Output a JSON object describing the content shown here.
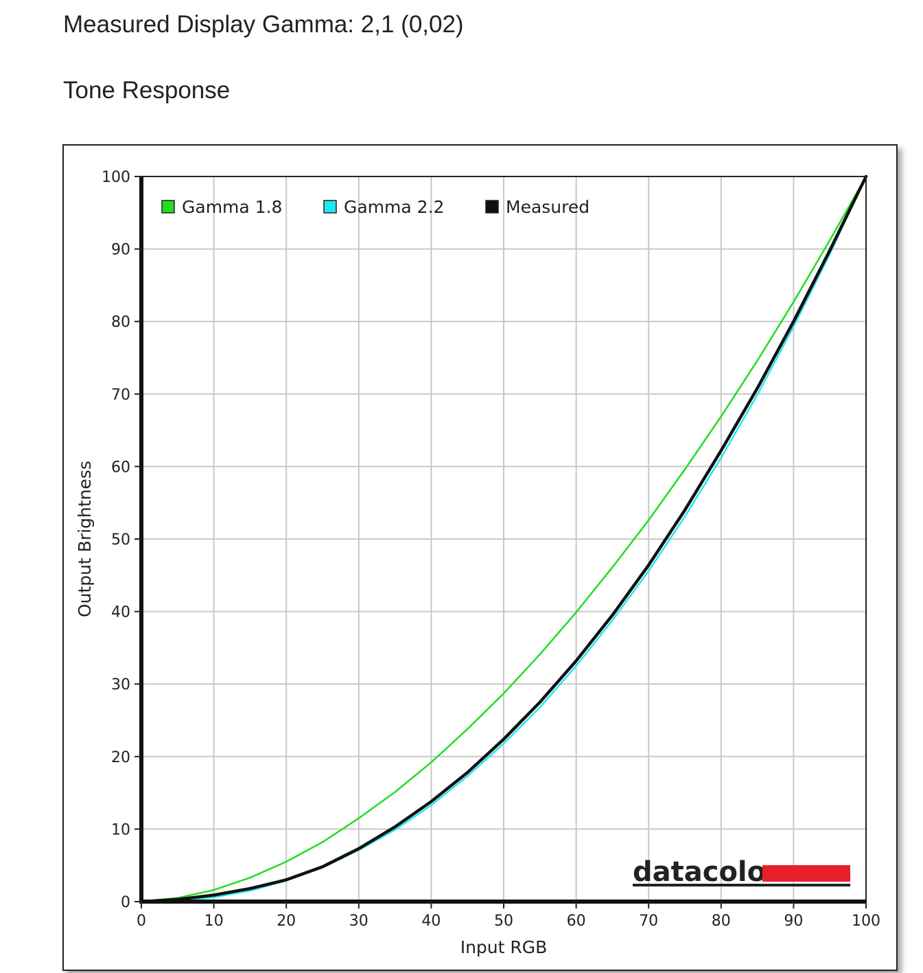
{
  "header": {
    "gamma_label": "Measured Display Gamma:",
    "gamma_value": "2,1 (0,02)",
    "section_title": "Tone Response"
  },
  "brand": {
    "logo_text": "datacolor",
    "logo_color": "#e8202a"
  },
  "chart_data": {
    "type": "line",
    "title": "",
    "xlabel": "Input RGB",
    "ylabel": "Output Brightness",
    "xlim": [
      0,
      100
    ],
    "ylim": [
      0,
      100
    ],
    "xticks": [
      0,
      10,
      20,
      30,
      40,
      50,
      60,
      70,
      80,
      90,
      100
    ],
    "yticks": [
      0,
      10,
      20,
      30,
      40,
      50,
      60,
      70,
      80,
      90,
      100
    ],
    "grid": true,
    "legend_position": "top-left",
    "series": [
      {
        "name": "Gamma 1.8",
        "color": "#22dd22",
        "x": [
          0,
          5,
          10,
          15,
          20,
          25,
          30,
          35,
          40,
          45,
          50,
          55,
          60,
          65,
          70,
          75,
          80,
          85,
          90,
          95,
          100
        ],
        "y": [
          0,
          0.5,
          1.6,
          3.3,
          5.5,
          8.2,
          11.5,
          15.1,
          19.2,
          23.8,
          28.7,
          34.1,
          39.9,
          46.1,
          52.6,
          59.6,
          66.9,
          74.6,
          82.7,
          91.2,
          100
        ]
      },
      {
        "name": "Gamma 2.2",
        "color": "#22e8ee",
        "x": [
          0,
          5,
          10,
          15,
          20,
          25,
          30,
          35,
          40,
          45,
          50,
          55,
          60,
          65,
          70,
          75,
          80,
          85,
          90,
          95,
          100
        ],
        "y": [
          0,
          0.1,
          0.6,
          1.5,
          2.9,
          4.7,
          7.1,
          9.9,
          13.3,
          17.3,
          21.8,
          26.8,
          32.5,
          38.8,
          45.6,
          53.1,
          61.2,
          69.9,
          79.3,
          89.3,
          100
        ]
      },
      {
        "name": "Measured",
        "color": "#111111",
        "x": [
          0,
          5,
          10,
          15,
          20,
          25,
          30,
          35,
          40,
          45,
          50,
          55,
          60,
          65,
          70,
          75,
          80,
          85,
          90,
          95,
          100
        ],
        "y": [
          0,
          0.3,
          0.9,
          1.8,
          3.0,
          4.8,
          7.3,
          10.3,
          13.8,
          17.8,
          22.4,
          27.5,
          33.2,
          39.5,
          46.4,
          54.0,
          62.2,
          70.8,
          80.0,
          89.8,
          100
        ]
      }
    ]
  }
}
